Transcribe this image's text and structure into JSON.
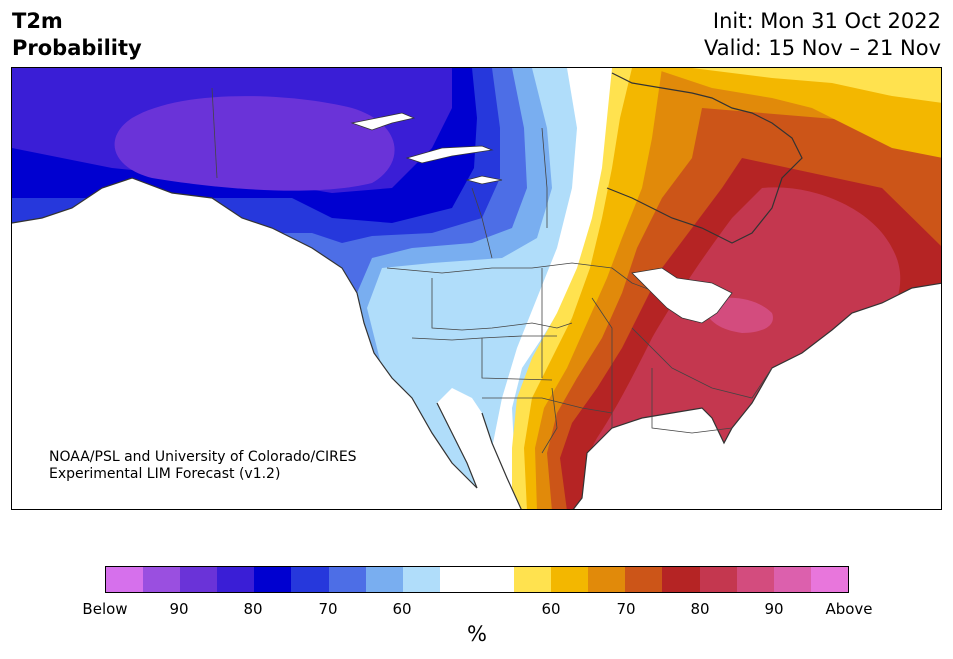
{
  "header": {
    "title_line1": "T2m",
    "title_line2": "Probability",
    "init": "Init: Mon 31 Oct 2022",
    "valid": "Valid: 15 Nov – 21 Nov"
  },
  "credit": {
    "line1": "NOAA/PSL and University of Colorado/CIRES",
    "line2": "Experimental LIM Forecast (v1.2)"
  },
  "colorbar": {
    "colors": [
      "#d670ec",
      "#9a4fe0",
      "#6a33d8",
      "#3a1ed6",
      "#0000d0",
      "#2638dc",
      "#4d6ee6",
      "#79aef0",
      "#b0ddfa",
      "#ffffff",
      "#ffffff",
      "#ffe24f",
      "#f3b700",
      "#e18a0a",
      "#cc5518",
      "#b52424",
      "#c4374f",
      "#d34c7e",
      "#dc60ad",
      "#e876dc"
    ],
    "tick_labels": [
      "Below",
      "90",
      "80",
      "70",
      "60",
      "60",
      "70",
      "80",
      "90",
      "Above"
    ],
    "unit": "%"
  },
  "map": {
    "region": "North America",
    "variable": "2 m temperature tercile probability",
    "palette": {
      "ocean": "#ffffff",
      "coast": "#333333"
    }
  }
}
